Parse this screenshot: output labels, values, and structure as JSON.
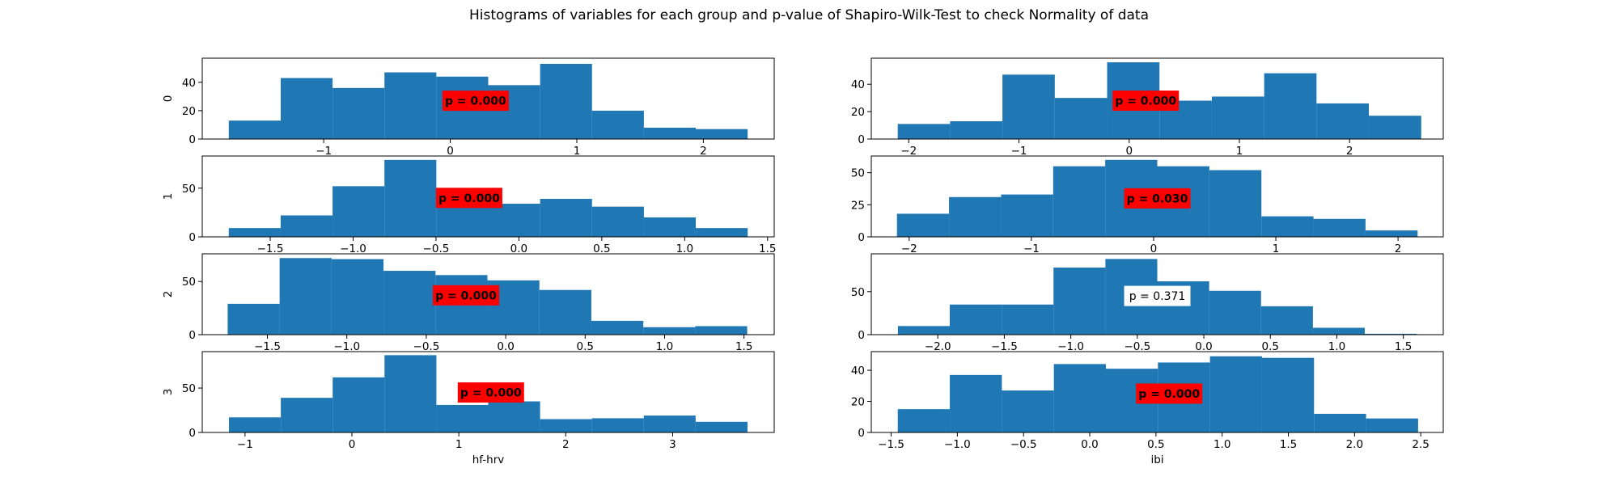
{
  "figure": {
    "title": "Histograms of variables for each group and p-value of Shapiro-Wilk-Test to check Normality of data",
    "bar_color": "#1f77b4",
    "highlight_color": "#ff0000"
  },
  "chart_data": [
    {
      "type": "bar",
      "row": 0,
      "col": 0,
      "ylabel": "0",
      "xlabel": "",
      "bin_start": -1.75,
      "bin_width": 0.41,
      "values": [
        13,
        43,
        36,
        47,
        44,
        38,
        53,
        20,
        8,
        7
      ],
      "xlim": [
        -1.96,
        2.56
      ],
      "ylim": [
        0,
        57
      ],
      "xticks": [
        -1,
        0,
        1,
        2
      ],
      "xtick_labels": [
        "−1",
        "0",
        "1",
        "2"
      ],
      "yticks": [
        0,
        20,
        40
      ],
      "ytick_labels": [
        "0",
        "20",
        "40"
      ],
      "pvalue": "p = 0.000",
      "significant": true,
      "pvalue_pos": [
        0.2,
        27
      ]
    },
    {
      "type": "bar",
      "row": 0,
      "col": 1,
      "ylabel": "",
      "xlabel": "",
      "bin_start": -2.1,
      "bin_width": 0.475,
      "values": [
        11,
        13,
        47,
        30,
        56,
        28,
        31,
        48,
        26,
        17
      ],
      "xlim": [
        -2.34,
        2.85
      ],
      "ylim": [
        0,
        59
      ],
      "xticks": [
        -2,
        -1,
        0,
        1,
        2
      ],
      "xtick_labels": [
        "−2",
        "−1",
        "0",
        "1",
        "2"
      ],
      "yticks": [
        0,
        20,
        40
      ],
      "ytick_labels": [
        "0",
        "20",
        "40"
      ],
      "pvalue": "p = 0.000",
      "significant": true,
      "pvalue_pos": [
        0.15,
        28
      ]
    },
    {
      "type": "bar",
      "row": 1,
      "col": 0,
      "ylabel": "1",
      "xlabel": "",
      "bin_start": -1.75,
      "bin_width": 0.313,
      "values": [
        9,
        22,
        52,
        79,
        43,
        34,
        39,
        31,
        20,
        9
      ],
      "xlim": [
        -1.91,
        1.54
      ],
      "ylim": [
        0,
        83
      ],
      "xticks": [
        -1.5,
        -1.0,
        -0.5,
        0.0,
        0.5,
        1.0,
        1.5
      ],
      "xtick_labels": [
        "−1.5",
        "−1.0",
        "−0.5",
        "0.0",
        "0.5",
        "1.0",
        "1.5"
      ],
      "yticks": [
        0,
        50
      ],
      "ytick_labels": [
        "0",
        "50"
      ],
      "pvalue": "p = 0.000",
      "significant": true,
      "pvalue_pos": [
        -0.3,
        40
      ]
    },
    {
      "type": "bar",
      "row": 1,
      "col": 1,
      "ylabel": "",
      "xlabel": "",
      "bin_start": -2.1,
      "bin_width": 0.426,
      "values": [
        18,
        31,
        33,
        55,
        60,
        55,
        52,
        16,
        14,
        5
      ],
      "xlim": [
        -2.31,
        2.37
      ],
      "ylim": [
        0,
        63
      ],
      "xticks": [
        -2,
        -1,
        0,
        1,
        2
      ],
      "xtick_labels": [
        "−2",
        "−1",
        "0",
        "1",
        "2"
      ],
      "yticks": [
        0,
        25,
        50
      ],
      "ytick_labels": [
        "0",
        "25",
        "50"
      ],
      "pvalue": "p = 0.030",
      "significant": true,
      "pvalue_pos": [
        0.03,
        30
      ]
    },
    {
      "type": "bar",
      "row": 2,
      "col": 0,
      "ylabel": "2",
      "xlabel": "",
      "bin_start": -1.75,
      "bin_width": 0.327,
      "values": [
        29,
        72,
        71,
        60,
        56,
        51,
        42,
        13,
        7,
        8
      ],
      "xlim": [
        -1.91,
        1.69
      ],
      "ylim": [
        0,
        76
      ],
      "xticks": [
        -1.5,
        -1.0,
        -0.5,
        0.0,
        0.5,
        1.0,
        1.5
      ],
      "xtick_labels": [
        "−1.5",
        "−1.0",
        "−0.5",
        "0.0",
        "0.5",
        "1.0",
        "1.5"
      ],
      "yticks": [
        0,
        50
      ],
      "ytick_labels": [
        "0",
        "50"
      ],
      "pvalue": "p = 0.000",
      "significant": true,
      "pvalue_pos": [
        -0.25,
        37
      ]
    },
    {
      "type": "bar",
      "row": 2,
      "col": 1,
      "ylabel": "",
      "xlabel": "",
      "bin_start": -2.3,
      "bin_width": 0.39,
      "values": [
        10,
        35,
        35,
        78,
        88,
        62,
        51,
        33,
        8,
        1
      ],
      "xlim": [
        -2.5,
        1.8
      ],
      "ylim": [
        0,
        94
      ],
      "xticks": [
        -2.0,
        -1.5,
        -1.0,
        -0.5,
        0.0,
        0.5,
        1.0,
        1.5
      ],
      "xtick_labels": [
        "−2.0",
        "−1.5",
        "−1.0",
        "−0.5",
        "0.0",
        "0.5",
        "1.0",
        "1.5"
      ],
      "yticks": [
        0,
        50
      ],
      "ytick_labels": [
        "0",
        "50"
      ],
      "pvalue": "p = 0.371",
      "significant": false,
      "pvalue_pos": [
        -0.35,
        45
      ]
    },
    {
      "type": "bar",
      "row": 3,
      "col": 0,
      "ylabel": "3",
      "xlabel": "hf-hrv",
      "bin_start": -1.15,
      "bin_width": 0.485,
      "values": [
        17,
        39,
        62,
        87,
        31,
        35,
        15,
        16,
        19,
        12
      ],
      "xlim": [
        -1.4,
        3.95
      ],
      "ylim": [
        0,
        91
      ],
      "xticks": [
        -1,
        0,
        1,
        2,
        3
      ],
      "xtick_labels": [
        "−1",
        "0",
        "1",
        "2",
        "3"
      ],
      "yticks": [
        0,
        50
      ],
      "ytick_labels": [
        "0",
        "50"
      ],
      "pvalue": "p = 0.000",
      "significant": true,
      "pvalue_pos": [
        1.3,
        45
      ]
    },
    {
      "type": "bar",
      "row": 3,
      "col": 1,
      "ylabel": "",
      "xlabel": "ibi",
      "bin_start": -1.45,
      "bin_width": 0.393,
      "values": [
        15,
        37,
        27,
        44,
        41,
        45,
        49,
        48,
        12,
        9
      ],
      "xlim": [
        -1.65,
        2.67
      ],
      "ylim": [
        0,
        52
      ],
      "xticks": [
        -1.5,
        -1.0,
        -0.5,
        0.0,
        0.5,
        1.0,
        1.5,
        2.0,
        2.5
      ],
      "xtick_labels": [
        "−1.5",
        "−1.0",
        "−0.5",
        "0.0",
        "0.5",
        "1.0",
        "1.5",
        "2.0",
        "2.5"
      ],
      "yticks": [
        0,
        20,
        40
      ],
      "ytick_labels": [
        "0",
        "20",
        "40"
      ],
      "pvalue": "p = 0.000",
      "significant": true,
      "pvalue_pos": [
        0.6,
        25
      ]
    }
  ]
}
